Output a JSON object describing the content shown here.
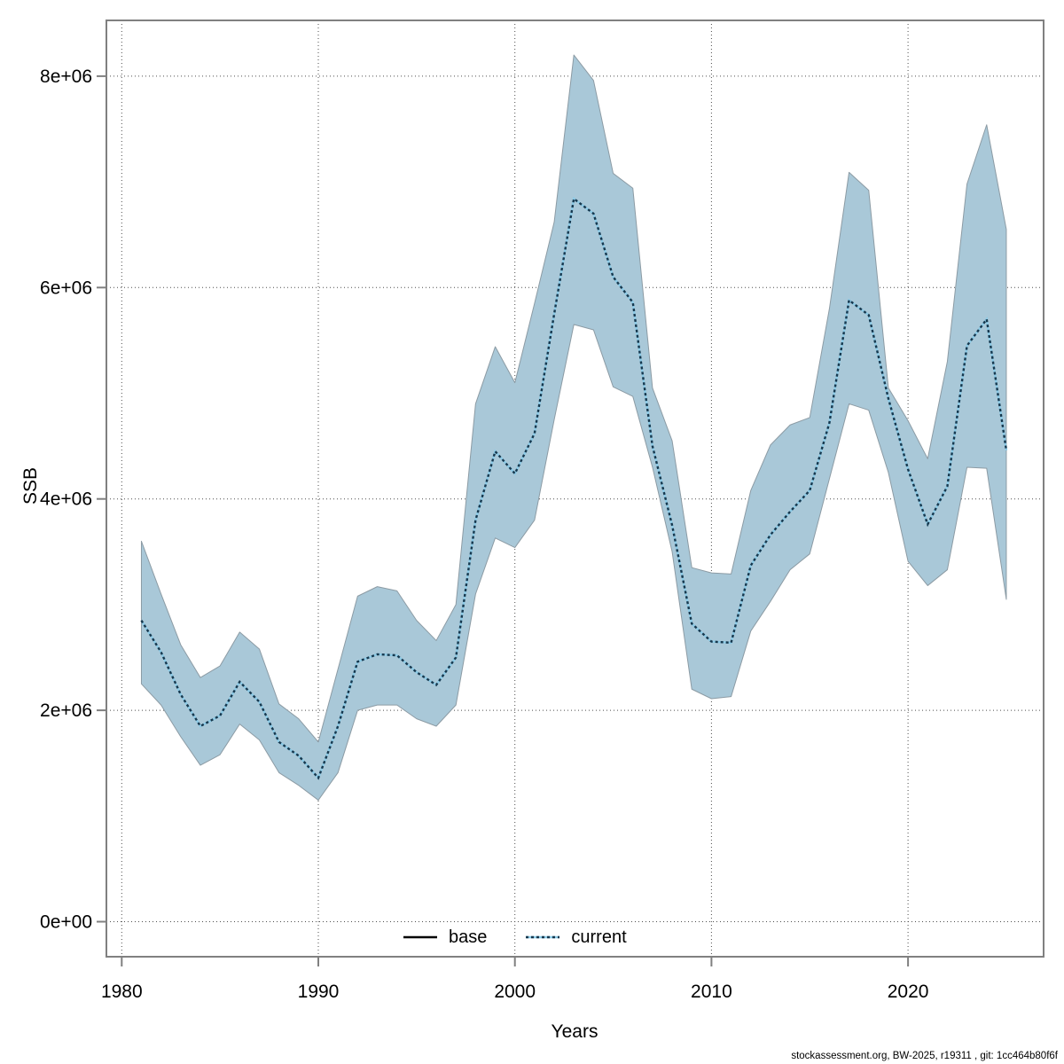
{
  "chart": {
    "ylabel": "SSB",
    "xlabel": "Years",
    "footer": "stockassessment.org, BW-2025, r19311 , git: 1cc464b80f6f",
    "legend": [
      {
        "label": "base",
        "style": "solid"
      },
      {
        "label": "current",
        "style": "dotted"
      }
    ],
    "colors": {
      "band_fill": "#a9c8d8",
      "band_edge": "#8c9ba4",
      "current_light": "#8ccae6",
      "current_dark": "#16384e",
      "base_line": "#000000",
      "frame": "#808080",
      "grid": "#4d4d4d",
      "text": "#000000"
    }
  },
  "chart_data": {
    "type": "line",
    "title": "",
    "xlabel": "Years",
    "ylabel": "SSB",
    "grid": "dotted",
    "legend_position": "bottom-center",
    "xlim": [
      1979.2,
      2026.9
    ],
    "ylim": [
      -330000,
      8530000
    ],
    "xticks": [
      1980,
      1990,
      2000,
      2010,
      2020
    ],
    "xtick_labels": [
      "1980",
      "1990",
      "2000",
      "2010",
      "2020"
    ],
    "yticks": [
      0,
      2000000,
      4000000,
      6000000,
      8000000
    ],
    "ytick_labels": [
      "0e+00",
      "2e+06",
      "4e+06",
      "6e+06",
      "8e+06"
    ],
    "x": [
      1981,
      1982,
      1983,
      1984,
      1985,
      1986,
      1987,
      1988,
      1989,
      1990,
      1991,
      1992,
      1993,
      1994,
      1995,
      1996,
      1997,
      1998,
      1999,
      2000,
      2001,
      2002,
      2003,
      2004,
      2005,
      2006,
      2007,
      2008,
      2009,
      2010,
      2011,
      2012,
      2013,
      2014,
      2015,
      2016,
      2017,
      2018,
      2019,
      2020,
      2021,
      2022,
      2023,
      2024,
      2025
    ],
    "series": [
      {
        "name": "current",
        "values": [
          2850000,
          2550000,
          2150000,
          1850000,
          1950000,
          2270000,
          2080000,
          1700000,
          1570000,
          1360000,
          1850000,
          2460000,
          2530000,
          2520000,
          2360000,
          2240000,
          2500000,
          3800000,
          4450000,
          4240000,
          4620000,
          5750000,
          6840000,
          6700000,
          6100000,
          5860000,
          4500000,
          3750000,
          2820000,
          2650000,
          2640000,
          3370000,
          3660000,
          3880000,
          4080000,
          4720000,
          5880000,
          5740000,
          4950000,
          4280000,
          3760000,
          4120000,
          5450000,
          5700000,
          4460000
        ],
        "lower": [
          2250000,
          2050000,
          1750000,
          1480000,
          1580000,
          1870000,
          1720000,
          1410000,
          1290000,
          1150000,
          1410000,
          2000000,
          2050000,
          2050000,
          1920000,
          1850000,
          2050000,
          3100000,
          3630000,
          3540000,
          3800000,
          4750000,
          5650000,
          5600000,
          5060000,
          4970000,
          4300000,
          3500000,
          2200000,
          2110000,
          2130000,
          2750000,
          3030000,
          3330000,
          3480000,
          4190000,
          4900000,
          4840000,
          4250000,
          3410000,
          3180000,
          3330000,
          4300000,
          4290000,
          3050000
        ],
        "upper": [
          3600000,
          3100000,
          2620000,
          2310000,
          2420000,
          2740000,
          2580000,
          2060000,
          1920000,
          1700000,
          2390000,
          3080000,
          3170000,
          3130000,
          2850000,
          2660000,
          3000000,
          4900000,
          5440000,
          5100000,
          5850000,
          6620000,
          8200000,
          7960000,
          7080000,
          6940000,
          5050000,
          4550000,
          3350000,
          3300000,
          3290000,
          4080000,
          4510000,
          4700000,
          4770000,
          5800000,
          7090000,
          6920000,
          5050000,
          4740000,
          4380000,
          5300000,
          6980000,
          7540000,
          6550000
        ]
      }
    ]
  }
}
